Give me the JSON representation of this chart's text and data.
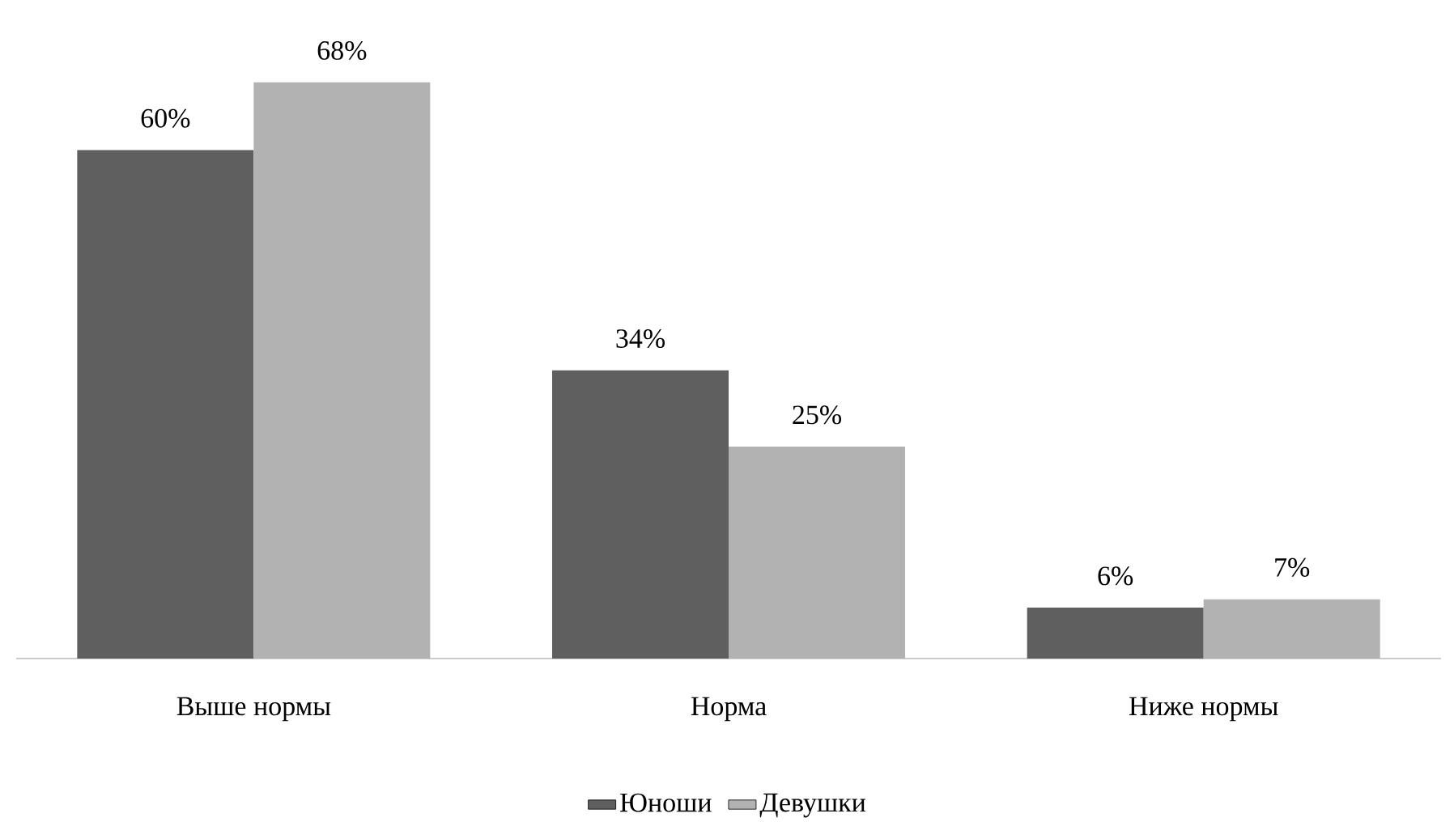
{
  "chart_data": {
    "type": "bar",
    "categories": [
      "Выше нормы",
      "Норма",
      "Ниже нормы"
    ],
    "series": [
      {
        "name": "Юноши",
        "color": "#5f5f5f",
        "values": [
          60,
          34,
          6
        ],
        "value_labels": [
          "60%",
          "34%",
          "6%"
        ]
      },
      {
        "name": "Девушки",
        "color": "#b2b2b2",
        "values": [
          68,
          25,
          7
        ],
        "value_labels": [
          "68%",
          "25%",
          "7%"
        ]
      }
    ],
    "legend": "bottom"
  }
}
